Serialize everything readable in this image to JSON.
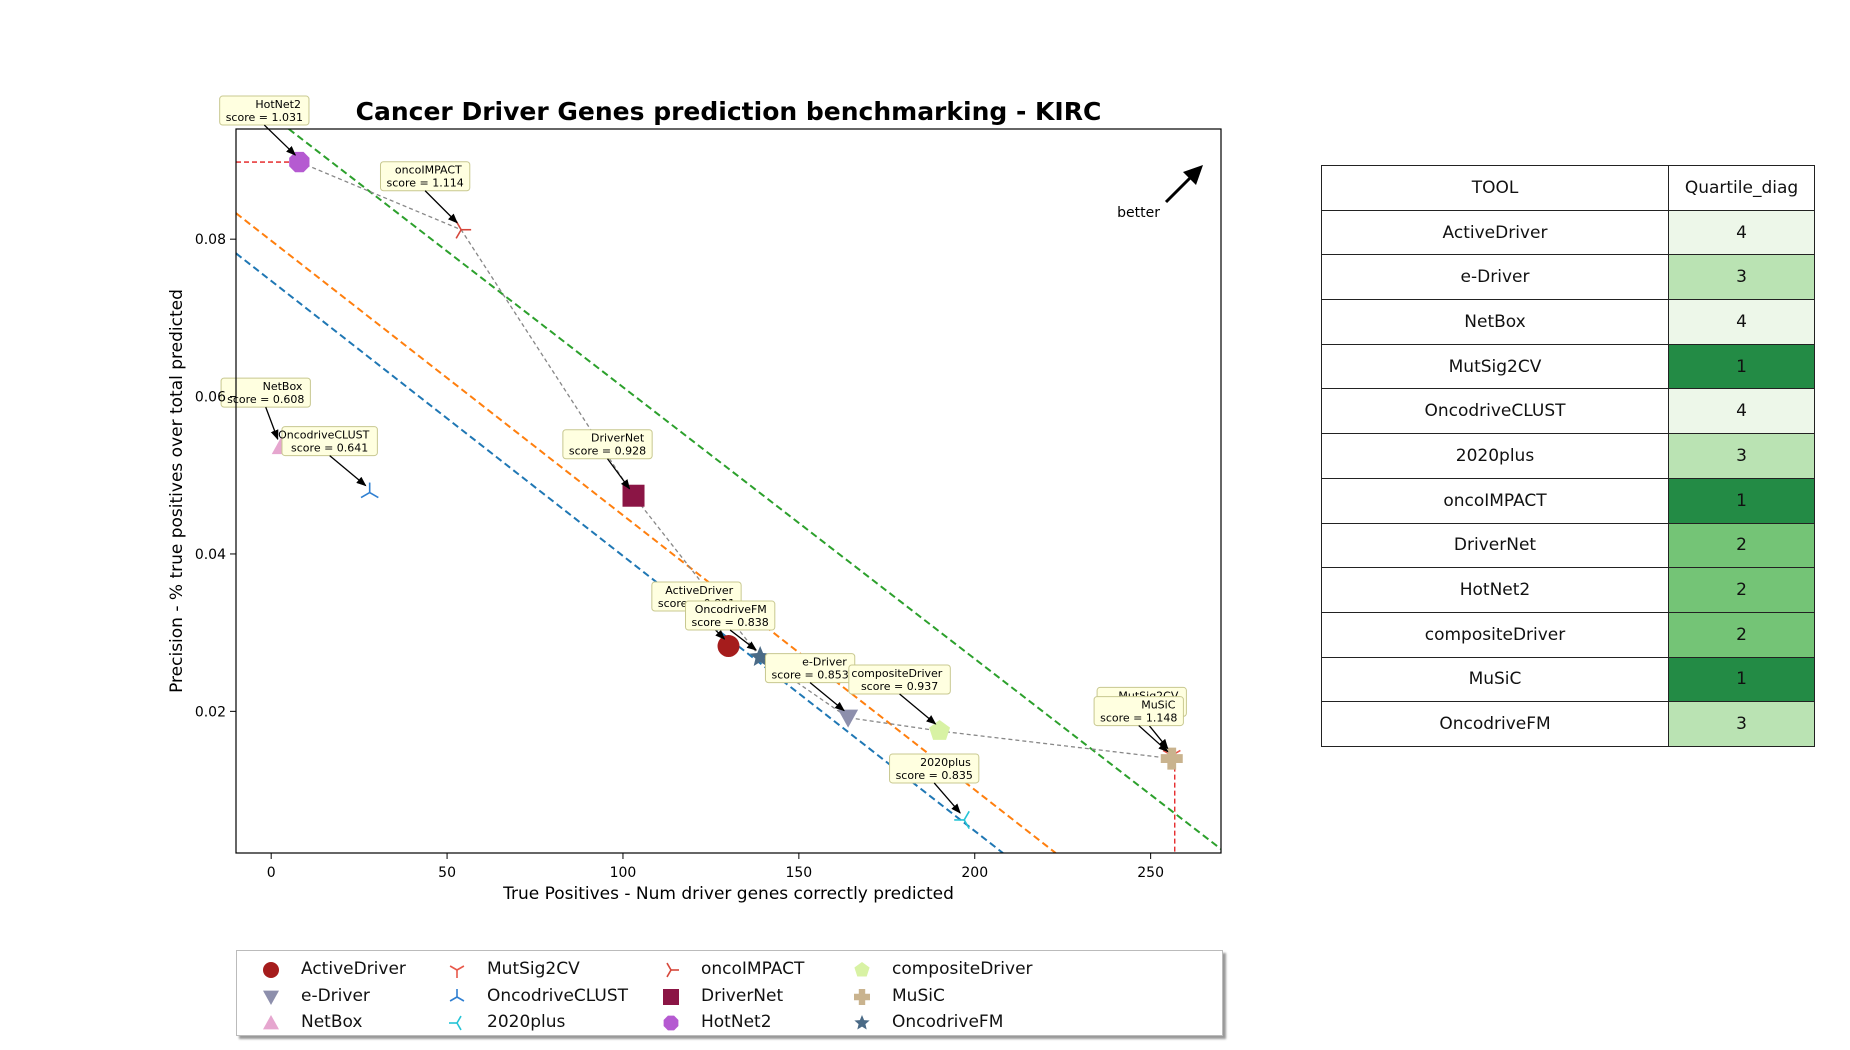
{
  "chart_data": {
    "type": "scatter",
    "title": "Cancer Driver Genes prediction benchmarking - KIRC",
    "xlabel": "True Positives - Num driver genes correctly predicted",
    "ylabel": "Precision - % true positives over total predicted",
    "xlim": [
      -10,
      270
    ],
    "ylim": [
      0.002,
      0.094
    ],
    "xticks": [
      0,
      50,
      100,
      150,
      200,
      250
    ],
    "yticks": [
      0.02,
      0.04,
      0.06,
      0.08
    ],
    "better_label": "better",
    "legend_placement": "bottom",
    "tools": [
      {
        "name": "ActiveDriver",
        "x": 130,
        "y": 0.0283,
        "score": "score = 0.821",
        "marker": "circle",
        "color": "#a51c1c"
      },
      {
        "name": "e-Driver",
        "x": 164,
        "y": 0.0192,
        "score": "score = 0.853",
        "marker": "triangle-down",
        "color": "#8d8fac"
      },
      {
        "name": "NetBox",
        "x": 3,
        "y": 0.0537,
        "score": "score = 0.608",
        "marker": "triangle-up",
        "color": "#e6a6cf"
      },
      {
        "name": "MutSig2CV",
        "x": 256,
        "y": 0.0144,
        "score": "score = 1.148",
        "marker": "tri-down",
        "color": "#e8584a"
      },
      {
        "name": "OncodriveCLUST",
        "x": 28,
        "y": 0.0478,
        "score": "score = 0.641",
        "marker": "tri-up",
        "color": "#2f7fd1"
      },
      {
        "name": "2020plus",
        "x": 197,
        "y": 0.0062,
        "score": "score = 0.835",
        "marker": "tri-left",
        "color": "#25c4d6"
      },
      {
        "name": "oncoIMPACT",
        "x": 54,
        "y": 0.0812,
        "score": "score = 1.114",
        "marker": "tri-right",
        "color": "#d6473b"
      },
      {
        "name": "DriverNet",
        "x": 103,
        "y": 0.0474,
        "score": "score = 0.928",
        "marker": "square",
        "color": "#8b1545"
      },
      {
        "name": "HotNet2",
        "x": 8,
        "y": 0.0898,
        "score": "score = 1.031",
        "marker": "octagon",
        "color": "#b55ad1"
      },
      {
        "name": "compositeDriver",
        "x": 190,
        "y": 0.0175,
        "score": "score = 0.937",
        "marker": "pentagon",
        "color": "#d8f2a4"
      },
      {
        "name": "MuSiC",
        "x": 256,
        "y": 0.014,
        "score": "score = 1.148",
        "marker": "plus",
        "color": "#c9b38e"
      },
      {
        "name": "OncodriveFM",
        "x": 139,
        "y": 0.0269,
        "score": "score = 0.838",
        "marker": "star",
        "color": "#4a6a86"
      }
    ],
    "pareto_frontier": [
      "HotNet2",
      "oncoIMPACT",
      "DriverNet",
      "OncodriveFM",
      "e-Driver",
      "compositeDriver",
      "MuSiC"
    ],
    "diagonal_lines": [
      {
        "color": "#2ca02c",
        "points": [
          [
            5,
            0.094
          ],
          [
            270,
            0.0025
          ]
        ]
      },
      {
        "color": "#ff7f0e",
        "points": [
          [
            -10,
            0.0833
          ],
          [
            223,
            0.002
          ]
        ]
      },
      {
        "color": "#1f77b4",
        "points": [
          [
            -10,
            0.0782
          ],
          [
            208,
            0.002
          ]
        ]
      }
    ],
    "grid": false
  },
  "table": {
    "headers": [
      "TOOL",
      "Quartile_diag"
    ],
    "rows": [
      {
        "tool": "ActiveDriver",
        "quartile": "4",
        "color": "#edf7e9"
      },
      {
        "tool": "e-Driver",
        "quartile": "3",
        "color": "#bae3b3"
      },
      {
        "tool": "NetBox",
        "quartile": "4",
        "color": "#edf7e9"
      },
      {
        "tool": "MutSig2CV",
        "quartile": "1",
        "color": "#238b45"
      },
      {
        "tool": "OncodriveCLUST",
        "quartile": "4",
        "color": "#edf7e9"
      },
      {
        "tool": "2020plus",
        "quartile": "3",
        "color": "#bae3b3"
      },
      {
        "tool": "oncoIMPACT",
        "quartile": "1",
        "color": "#238b45"
      },
      {
        "tool": "DriverNet",
        "quartile": "2",
        "color": "#74c476"
      },
      {
        "tool": "HotNet2",
        "quartile": "2",
        "color": "#74c476"
      },
      {
        "tool": "compositeDriver",
        "quartile": "2",
        "color": "#74c476"
      },
      {
        "tool": "MuSiC",
        "quartile": "1",
        "color": "#238b45"
      },
      {
        "tool": "OncodriveFM",
        "quartile": "3",
        "color": "#bae3b3"
      }
    ]
  }
}
